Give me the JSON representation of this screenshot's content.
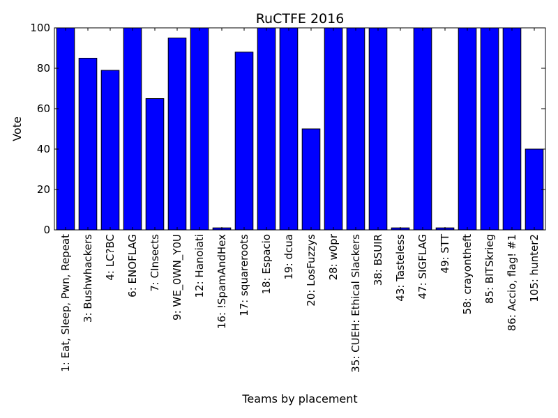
{
  "chart_data": {
    "type": "bar",
    "title": "RuCTFE 2016",
    "xlabel": "Teams by placement",
    "ylabel": "Vote",
    "ylim": [
      0,
      100
    ],
    "yticks": [
      0,
      20,
      40,
      60,
      80,
      100
    ],
    "grid": false,
    "legend": "none",
    "bar_color": "#0000ff",
    "categories": [
      "1: Eat, Sleep, Pwn, Repeat",
      "3: Bushwhackers",
      "4: LC?BC",
      "6: ENOFLAG",
      "7: CInsects",
      "9: WE_0WN_Y0U",
      "12: Hanoiati",
      "16: !SpamAndHex",
      "17: squareroots",
      "18: Espacio",
      "19: dcua",
      "20: LosFuzzys",
      "28: w0pr",
      "35: CUEH: Ethical Slackers",
      "38: BSUIR",
      "43: Tasteless",
      "47: SIGFLAG",
      "49: STT",
      "58: crayontheft",
      "85: BITSkrieg",
      "86: Accio, flag! #1",
      "105: hunter2"
    ],
    "values": [
      100,
      85,
      79,
      100,
      65,
      95,
      100,
      1,
      88,
      100,
      100,
      50,
      100,
      100,
      100,
      1,
      100,
      1,
      100,
      100,
      100,
      40
    ]
  }
}
